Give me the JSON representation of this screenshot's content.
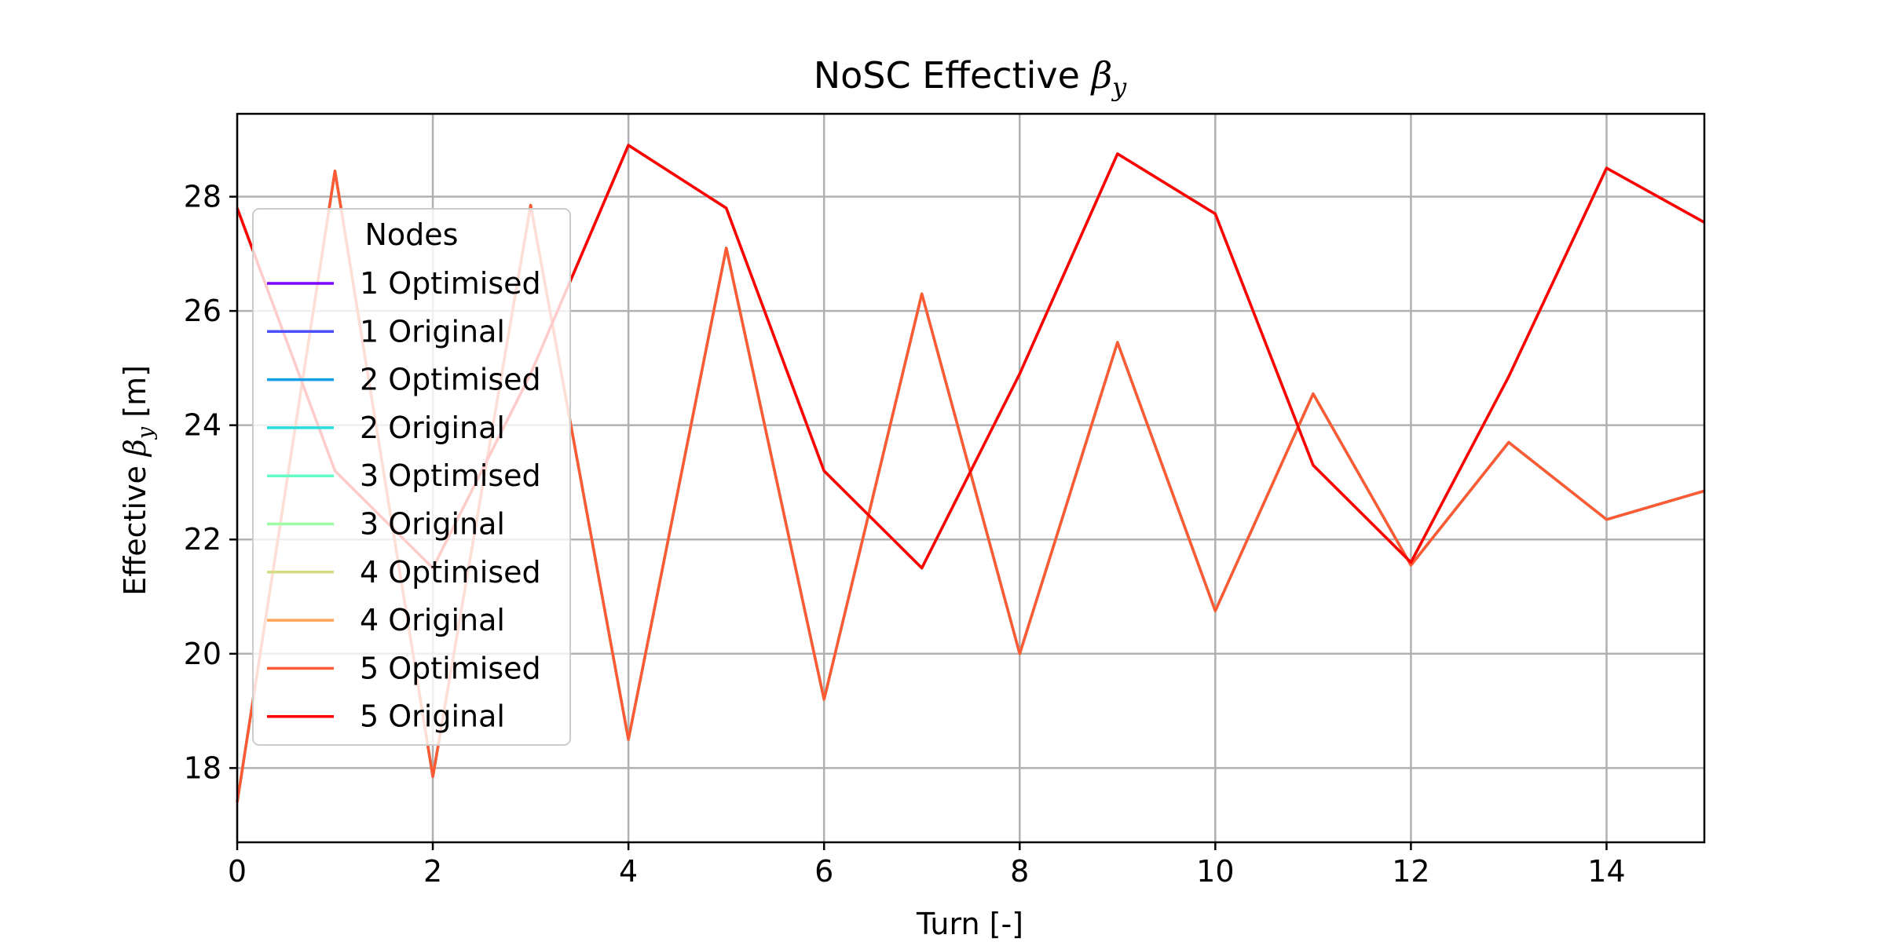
{
  "chart_data": {
    "type": "line",
    "title_prefix": "NoSC Effective ",
    "title_symbol": "β",
    "title_sub": "y",
    "xlabel": "Turn [-]",
    "ylabel_prefix": "Effective ",
    "ylabel_symbol": "β",
    "ylabel_sub": "y",
    "ylabel_suffix": " [m]",
    "xlim": [
      0,
      15
    ],
    "ylim": [
      16.7,
      29.45
    ],
    "xticks": [
      0,
      2,
      4,
      6,
      8,
      10,
      12,
      14
    ],
    "yticks": [
      18,
      20,
      22,
      24,
      26,
      28
    ],
    "grid": true,
    "legend_title": "Nodes",
    "legend_position": "upper-left",
    "x": [
      0,
      1,
      2,
      3,
      4,
      5,
      6,
      7,
      8,
      9,
      10,
      11,
      12,
      13,
      14,
      15
    ],
    "series": [
      {
        "name": "1 Optimised",
        "color": "#7f00ff",
        "values": [
          17.4,
          28.45,
          17.85,
          27.85,
          18.5,
          27.1,
          19.2,
          26.3,
          20.0,
          25.45,
          20.75,
          24.55,
          21.55,
          23.7,
          22.35,
          22.85
        ]
      },
      {
        "name": "1 Original",
        "color": "#4a4ffb",
        "values": [
          27.8,
          23.2,
          21.5,
          24.9,
          28.9,
          27.8,
          23.2,
          21.5,
          24.9,
          28.75,
          27.7,
          23.3,
          21.6,
          24.85,
          28.5,
          27.55
        ]
      },
      {
        "name": "2 Optimised",
        "color": "#139eea",
        "values": [
          17.4,
          28.45,
          17.85,
          27.85,
          18.5,
          27.1,
          19.2,
          26.3,
          20.0,
          25.45,
          20.75,
          24.55,
          21.55,
          23.7,
          22.35,
          22.85
        ]
      },
      {
        "name": "2 Original",
        "color": "#2adddd",
        "values": [
          27.8,
          23.2,
          21.5,
          24.9,
          28.9,
          27.8,
          23.2,
          21.5,
          24.9,
          28.75,
          27.7,
          23.3,
          21.6,
          24.85,
          28.5,
          27.55
        ]
      },
      {
        "name": "3 Optimised",
        "color": "#62fbc4",
        "values": [
          17.4,
          28.45,
          17.85,
          27.85,
          18.5,
          27.1,
          19.2,
          26.3,
          20.0,
          25.45,
          20.75,
          24.55,
          21.55,
          23.7,
          22.35,
          22.85
        ]
      },
      {
        "name": "3 Original",
        "color": "#9cfba4",
        "values": [
          27.8,
          23.2,
          21.5,
          24.9,
          28.9,
          27.8,
          23.2,
          21.5,
          24.9,
          28.75,
          27.7,
          23.3,
          21.6,
          24.85,
          28.5,
          27.55
        ]
      },
      {
        "name": "4 Optimised",
        "color": "#d4dd80",
        "values": [
          17.4,
          28.45,
          17.85,
          27.85,
          18.5,
          27.1,
          19.2,
          26.3,
          20.0,
          25.45,
          20.75,
          24.55,
          21.55,
          23.7,
          22.35,
          22.85
        ]
      },
      {
        "name": "4 Original",
        "color": "#ffa256",
        "values": [
          27.8,
          23.2,
          21.5,
          24.9,
          28.9,
          27.8,
          23.2,
          21.5,
          24.9,
          28.75,
          27.7,
          23.3,
          21.6,
          24.85,
          28.5,
          27.55
        ]
      },
      {
        "name": "5 Optimised",
        "color": "#ff5a33",
        "values": [
          17.4,
          28.45,
          17.85,
          27.85,
          18.5,
          27.1,
          19.2,
          26.3,
          20.0,
          25.45,
          20.75,
          24.55,
          21.55,
          23.7,
          22.35,
          22.85
        ]
      },
      {
        "name": "5 Original",
        "color": "#ff0000",
        "values": [
          27.8,
          23.2,
          21.5,
          24.9,
          28.9,
          27.8,
          23.2,
          21.5,
          24.9,
          28.75,
          27.7,
          23.3,
          21.6,
          24.85,
          28.5,
          27.55
        ]
      }
    ]
  }
}
